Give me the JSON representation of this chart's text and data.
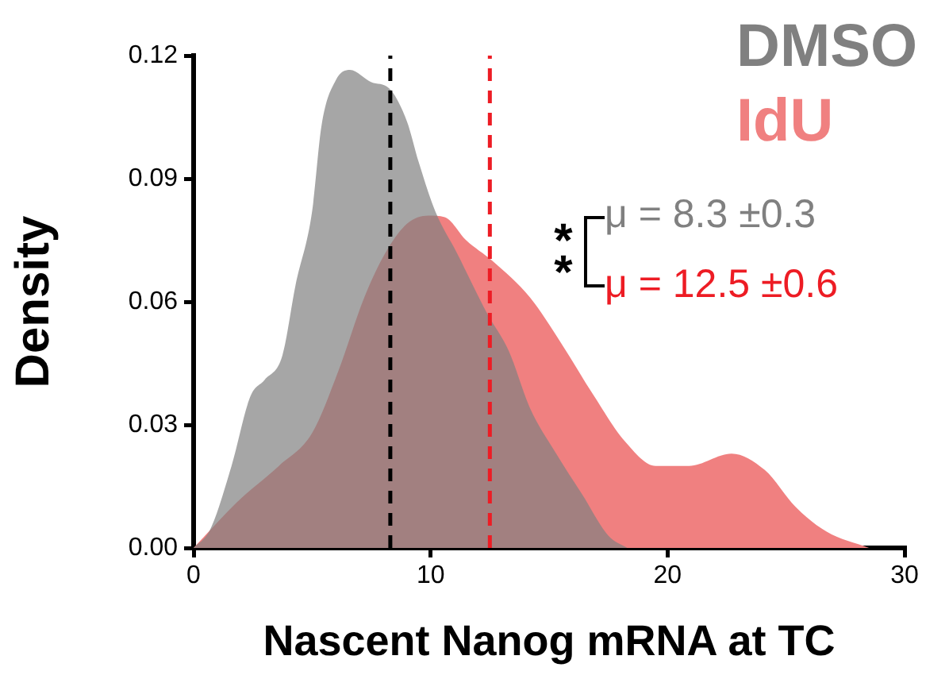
{
  "chart_data": {
    "type": "area",
    "xlabel": "Nascent Nanog mRNA at TC",
    "ylabel": "Density",
    "xlim": [
      0,
      30
    ],
    "xticks": [
      0,
      10,
      20,
      30
    ],
    "ylim": [
      0,
      0.12
    ],
    "yticks": [
      {
        "value": 0,
        "label": "0.00"
      },
      {
        "value": 0.03,
        "label": "0.03"
      },
      {
        "value": 0.06,
        "label": "0.06"
      },
      {
        "value": 0.09,
        "label": "0.09"
      },
      {
        "value": 0.12,
        "label": "0.12"
      }
    ],
    "legend": "top right",
    "series": [
      {
        "name": "DMSO",
        "color": "#808080",
        "x": [
          0,
          0.7,
          1.6,
          2.4,
          3.0,
          3.75,
          4.3,
          5.0,
          5.4,
          6.0,
          6.6,
          7.5,
          8.25,
          9.0,
          9.5,
          10.2,
          11.1,
          12.4,
          13.3,
          14.2,
          15.3,
          16.4,
          17.5,
          18.3
        ],
        "values": [
          0,
          0.0045,
          0.02,
          0.037,
          0.041,
          0.047,
          0.064,
          0.082,
          0.103,
          0.114,
          0.1165,
          0.1135,
          0.112,
          0.104,
          0.094,
          0.082,
          0.072,
          0.057,
          0.048,
          0.034,
          0.023,
          0.013,
          0.003,
          0
        ]
      },
      {
        "name": "IdU",
        "color": "#f08080",
        "x": [
          0,
          1.8,
          3.6,
          5.0,
          6.1,
          7.2,
          8.1,
          9.0,
          9.9,
          10.6,
          11.5,
          12.6,
          14.2,
          15.5,
          16.9,
          18.2,
          19.5,
          20.9,
          22.7,
          24.1,
          25.4,
          26.7,
          28.5
        ],
        "values": [
          0,
          0.011,
          0.02,
          0.028,
          0.043,
          0.061,
          0.072,
          0.079,
          0.081,
          0.0806,
          0.075,
          0.07,
          0.061,
          0.05,
          0.037,
          0.026,
          0.02,
          0.02,
          0.023,
          0.019,
          0.01,
          0.004,
          0
        ]
      }
    ],
    "ref_lines": [
      {
        "axis": "x",
        "value": 8.3,
        "color": "#000000",
        "line_style": "dashed"
      },
      {
        "axis": "x",
        "value": 12.5,
        "color": "#ed1c24",
        "line_style": "dashed"
      }
    ],
    "annotations": [
      "μ = 8.3 ±0.3",
      "μ = 12.5 ±0.6",
      "**"
    ]
  }
}
